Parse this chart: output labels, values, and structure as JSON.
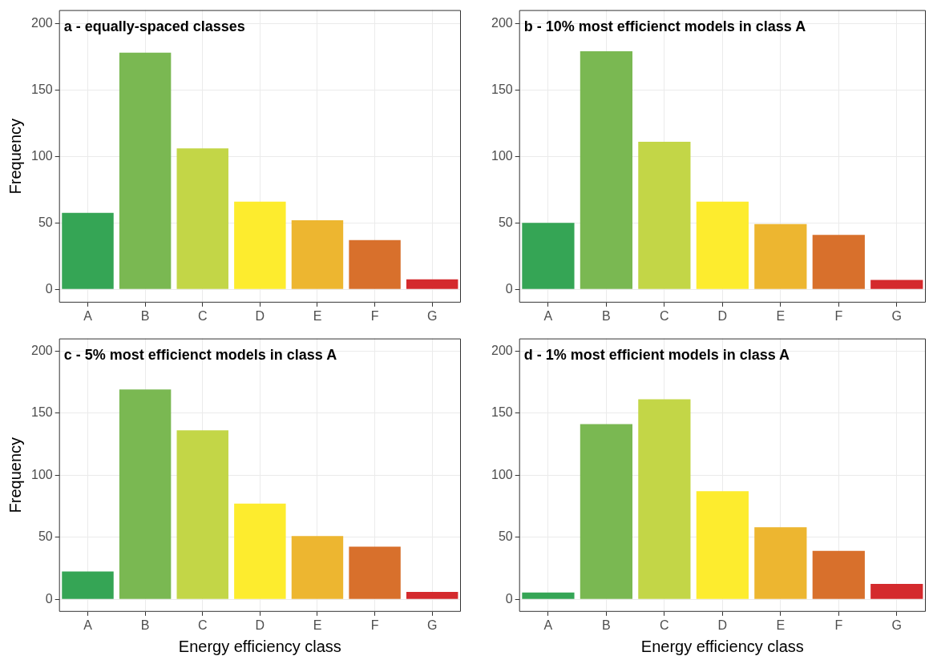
{
  "chart_data": [
    {
      "type": "bar",
      "title": "a - equally-spaced classes",
      "ylabel": "Frequency",
      "categories": [
        "A",
        "B",
        "C",
        "D",
        "E",
        "F",
        "G"
      ],
      "values": [
        57.5,
        178,
        106,
        66,
        52,
        37,
        7.5
      ],
      "colors": [
        "#35a555",
        "#7ab852",
        "#c3d647",
        "#fdec2e",
        "#edb630",
        "#d8702c",
        "#d42a2d"
      ],
      "ylim": [
        -10,
        210
      ],
      "yticks": [
        0,
        50,
        100,
        150,
        200
      ],
      "grid": true
    },
    {
      "type": "bar",
      "title": "b - 10% most efficienct models in class A",
      "categories": [
        "A",
        "B",
        "C",
        "D",
        "E",
        "F",
        "G"
      ],
      "values": [
        50,
        179,
        111,
        66,
        49,
        41,
        7
      ],
      "colors": [
        "#35a555",
        "#7ab852",
        "#c3d647",
        "#fdec2e",
        "#edb630",
        "#d8702c",
        "#d42a2d"
      ],
      "ylim": [
        -10,
        210
      ],
      "yticks": [
        0,
        50,
        100,
        150,
        200
      ],
      "grid": true
    },
    {
      "type": "bar",
      "title": "c - 5% most efficienct models in class A",
      "xlabel": "Energy efficiency class",
      "ylabel": "Frequency",
      "categories": [
        "A",
        "B",
        "C",
        "D",
        "E",
        "F",
        "G"
      ],
      "values": [
        22.5,
        169,
        136,
        77,
        51,
        42.5,
        6
      ],
      "colors": [
        "#35a555",
        "#7ab852",
        "#c3d647",
        "#fdec2e",
        "#edb630",
        "#d8702c",
        "#d42a2d"
      ],
      "ylim": [
        -10,
        210
      ],
      "yticks": [
        0,
        50,
        100,
        150,
        200
      ],
      "grid": true
    },
    {
      "type": "bar",
      "title": "d - 1% most efficient models in class A",
      "xlabel": "Energy efficiency class",
      "categories": [
        "A",
        "B",
        "C",
        "D",
        "E",
        "F",
        "G"
      ],
      "values": [
        5.5,
        141,
        161,
        87,
        58,
        39,
        12.5
      ],
      "colors": [
        "#35a555",
        "#7ab852",
        "#c3d647",
        "#fdec2e",
        "#edb630",
        "#d8702c",
        "#d42a2d"
      ],
      "ylim": [
        -10,
        210
      ],
      "yticks": [
        0,
        50,
        100,
        150,
        200
      ],
      "grid": true
    }
  ]
}
